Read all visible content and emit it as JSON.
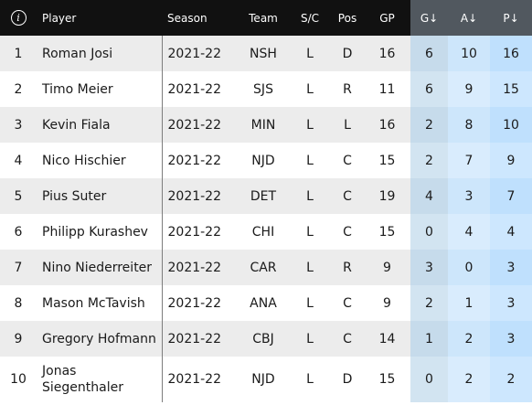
{
  "table": {
    "headers": {
      "info_glyph": "i",
      "player": "Player",
      "season": "Season",
      "team": "Team",
      "sc": "S/C",
      "pos": "Pos",
      "gp": "GP",
      "g": "G↓",
      "a": "A↓",
      "p": "P↓"
    },
    "rows": [
      {
        "rank": "1",
        "player": "Roman Josi",
        "season": "2021-22",
        "team": "NSH",
        "sc": "L",
        "pos": "D",
        "gp": "16",
        "g": "6",
        "a": "10",
        "p": "16"
      },
      {
        "rank": "2",
        "player": "Timo Meier",
        "season": "2021-22",
        "team": "SJS",
        "sc": "L",
        "pos": "R",
        "gp": "11",
        "g": "6",
        "a": "9",
        "p": "15"
      },
      {
        "rank": "3",
        "player": "Kevin Fiala",
        "season": "2021-22",
        "team": "MIN",
        "sc": "L",
        "pos": "L",
        "gp": "16",
        "g": "2",
        "a": "8",
        "p": "10"
      },
      {
        "rank": "4",
        "player": "Nico Hischier",
        "season": "2021-22",
        "team": "NJD",
        "sc": "L",
        "pos": "C",
        "gp": "15",
        "g": "2",
        "a": "7",
        "p": "9"
      },
      {
        "rank": "5",
        "player": "Pius Suter",
        "season": "2021-22",
        "team": "DET",
        "sc": "L",
        "pos": "C",
        "gp": "19",
        "g": "4",
        "a": "3",
        "p": "7"
      },
      {
        "rank": "6",
        "player": "Philipp Kurashev",
        "season": "2021-22",
        "team": "CHI",
        "sc": "L",
        "pos": "C",
        "gp": "15",
        "g": "0",
        "a": "4",
        "p": "4"
      },
      {
        "rank": "7",
        "player": "Nino Niederreiter",
        "season": "2021-22",
        "team": "CAR",
        "sc": "L",
        "pos": "R",
        "gp": "9",
        "g": "3",
        "a": "0",
        "p": "3"
      },
      {
        "rank": "8",
        "player": "Mason McTavish",
        "season": "2021-22",
        "team": "ANA",
        "sc": "L",
        "pos": "C",
        "gp": "9",
        "g": "2",
        "a": "1",
        "p": "3"
      },
      {
        "rank": "9",
        "player": "Gregory Hofmann",
        "season": "2021-22",
        "team": "CBJ",
        "sc": "L",
        "pos": "C",
        "gp": "14",
        "g": "1",
        "a": "2",
        "p": "3"
      },
      {
        "rank": "10",
        "player": "Jonas Siegenthaler",
        "season": "2021-22",
        "team": "NJD",
        "sc": "L",
        "pos": "D",
        "gp": "15",
        "g": "0",
        "a": "2",
        "p": "2"
      }
    ]
  }
}
